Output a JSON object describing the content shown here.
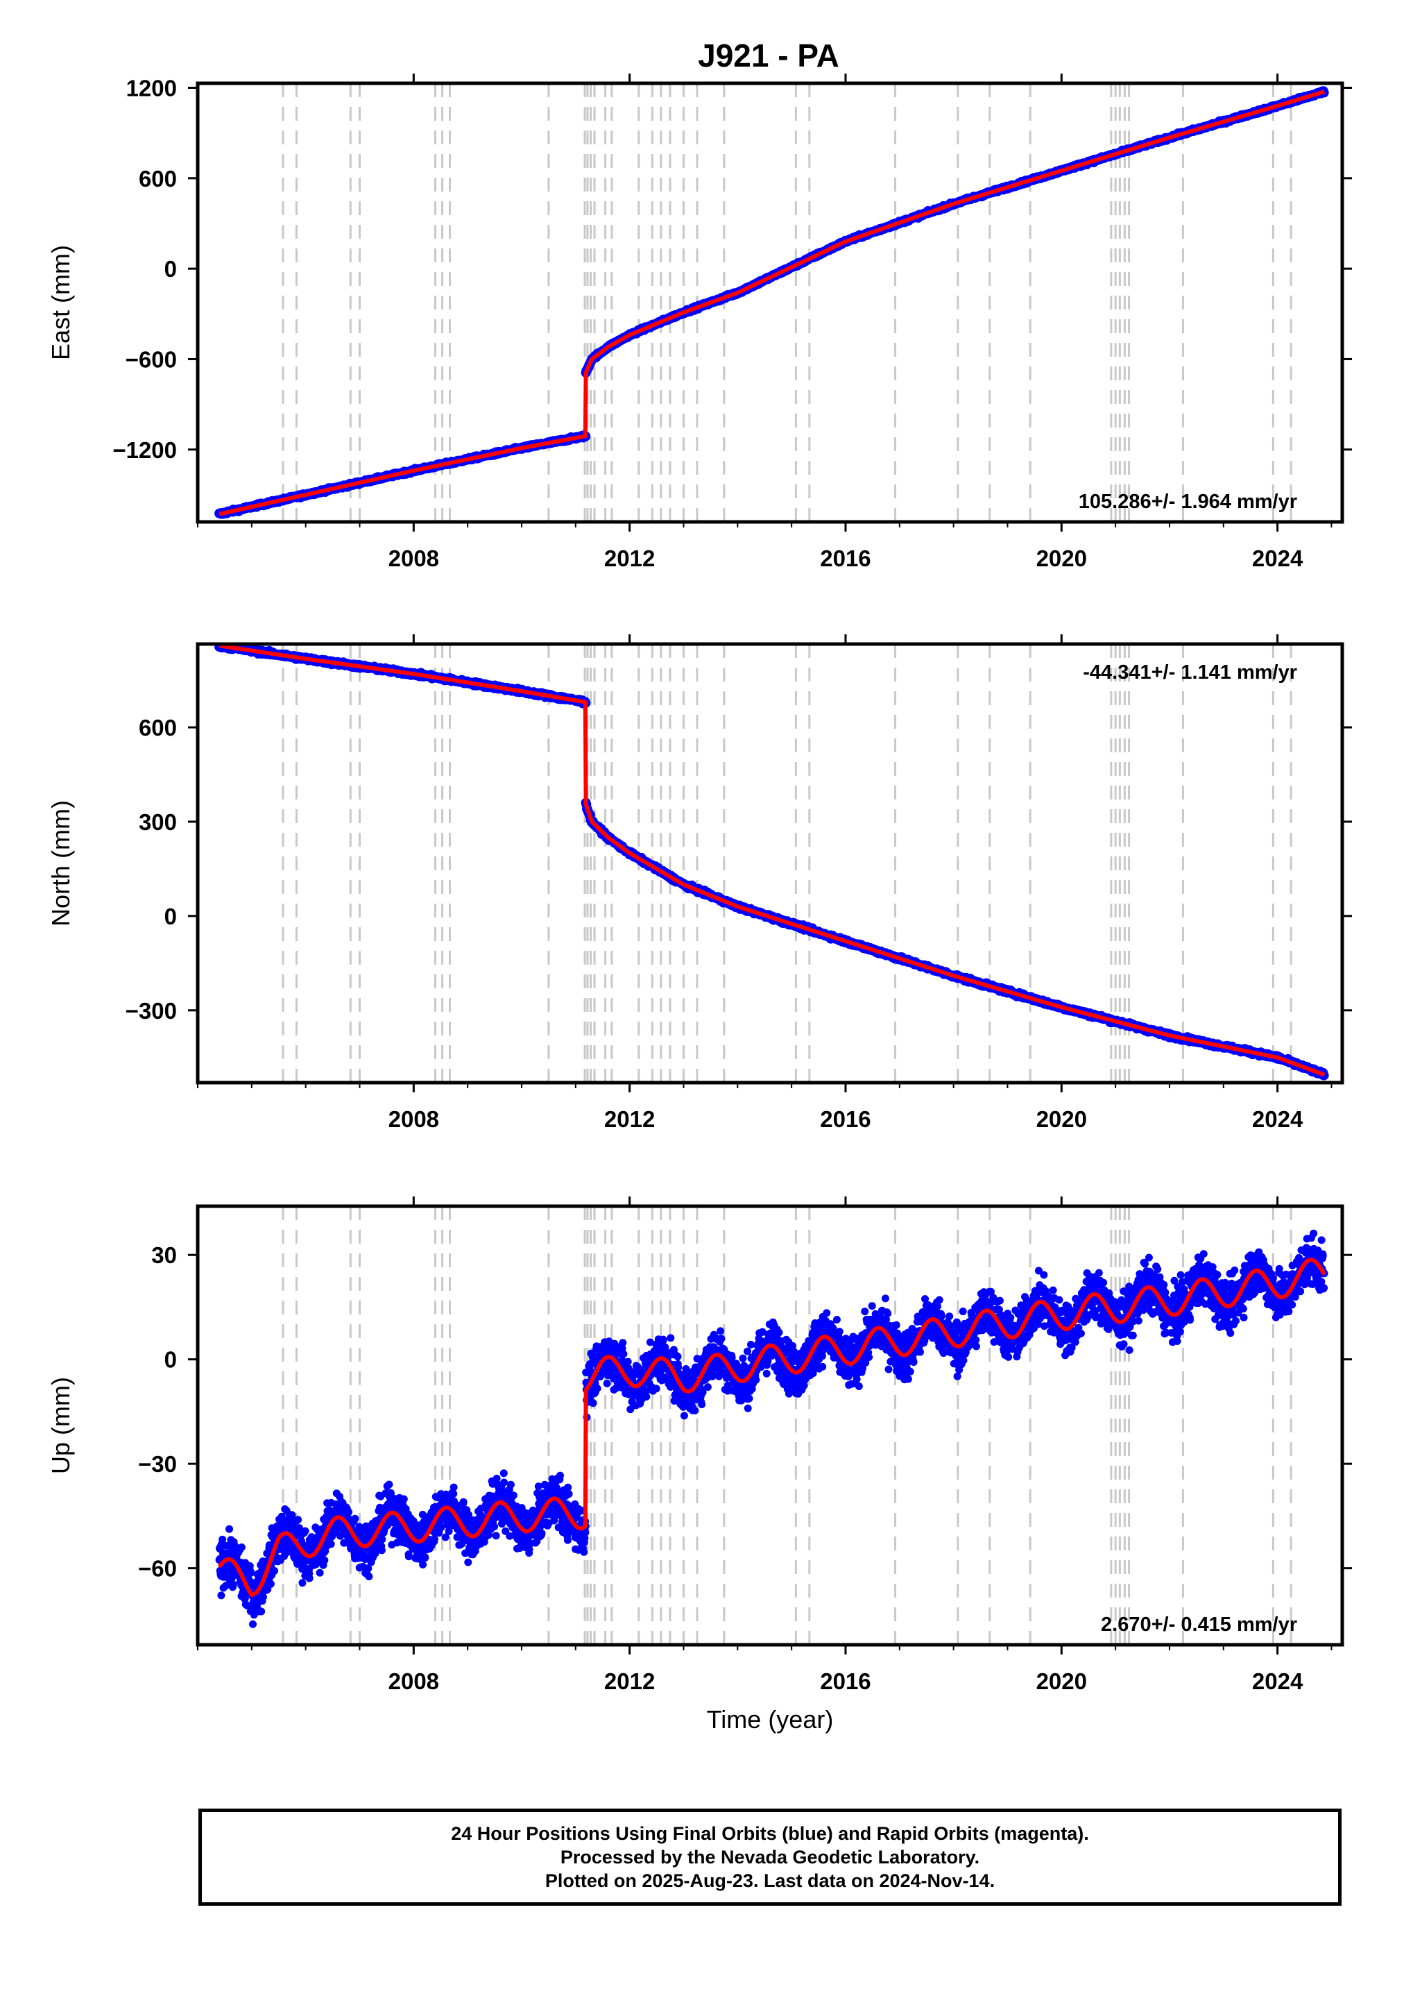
{
  "figure_title": "J921 - PA",
  "colors": {
    "final_orbits": "#0000ff",
    "model": "#ff0000",
    "event_lines": "#c8c8c8",
    "frame": "#000000"
  },
  "caption": {
    "line1": "24 Hour Positions Using Final Orbits (blue) and Rapid Orbits (magenta).",
    "line2": "Processed by the Nevada Geodetic Laboratory.",
    "line3": "Plotted on 2025-Aug-23. Last data on 2024-Nov-14."
  },
  "chart_data": [
    {
      "type": "scatter",
      "ylabel": "East (mm)",
      "xlabel": "",
      "xlim": [
        2004.0,
        2025.2
      ],
      "ylim": [
        -1680,
        1230
      ],
      "x_ticks": [
        2008,
        2012,
        2016,
        2020,
        2024
      ],
      "x_tick_labels": [
        "2008",
        "2012",
        "2016",
        "2020",
        "2024"
      ],
      "y_ticks": [
        1200,
        600,
        0,
        -600,
        -1200
      ],
      "y_tick_labels": [
        "1200",
        "600",
        "0",
        "−600",
        "−1200"
      ],
      "rate": "105.286+/- 1.964 mm/yr",
      "rate_position": "bottom-right",
      "equipment_changes": [
        2005.58,
        2005.83,
        2006.83,
        2007.0,
        2008.4,
        2008.53,
        2008.67,
        2010.5,
        2011.17,
        2011.22,
        2011.28,
        2011.35,
        2011.55,
        2011.67,
        2012.17,
        2012.42,
        2012.58,
        2012.75,
        2013.0,
        2013.25,
        2013.75,
        2015.08,
        2015.33,
        2016.92,
        2018.08,
        2018.67,
        2019.42,
        2020.92,
        2021.0,
        2021.08,
        2021.17,
        2021.25,
        2022.25,
        2023.92,
        2024.25
      ],
      "series": [
        {
          "segments": [
            {
              "x": [
                2004.4,
                2006.0,
                2008.0,
                2010.0,
                2011.19
              ],
              "y": [
                -1628,
                -1500,
                -1340,
                -1190,
                -1110
              ]
            },
            {
              "x": [
                2011.19,
                2011.3,
                2011.6,
                2012.0,
                2013.0,
                2014.0,
                2016.0,
                2018.0,
                2020.0,
                2022.0,
                2024.0,
                2024.87
              ],
              "y": [
                -690,
                -600,
                -520,
                -440,
                -290,
                -160,
                180,
                430,
                650,
                870,
                1080,
                1175
              ]
            }
          ],
          "noise": 6
        }
      ]
    },
    {
      "type": "scatter",
      "ylabel": "North (mm)",
      "xlabel": "",
      "xlim": [
        2004.0,
        2025.2
      ],
      "ylim": [
        -530,
        865
      ],
      "x_ticks": [
        2008,
        2012,
        2016,
        2020,
        2024
      ],
      "x_tick_labels": [
        "2008",
        "2012",
        "2016",
        "2020",
        "2024"
      ],
      "y_ticks": [
        600,
        300,
        0,
        -300
      ],
      "y_tick_labels": [
        "600",
        "300",
        "0",
        "−300"
      ],
      "rate": "-44.341+/- 1.141 mm/yr",
      "rate_position": "top-right",
      "equipment_changes": [
        2005.58,
        2005.83,
        2006.83,
        2007.0,
        2008.4,
        2008.53,
        2008.67,
        2010.5,
        2011.17,
        2011.22,
        2011.28,
        2011.35,
        2011.55,
        2011.67,
        2012.17,
        2012.42,
        2012.58,
        2012.75,
        2013.0,
        2013.25,
        2013.75,
        2015.08,
        2015.33,
        2016.92,
        2018.08,
        2018.67,
        2019.42,
        2020.92,
        2021.0,
        2021.08,
        2021.17,
        2021.25,
        2022.25,
        2023.92,
        2024.25
      ],
      "series": [
        {
          "segments": [
            {
              "x": [
                2004.4,
                2006.0,
                2008.0,
                2010.0,
                2011.19
              ],
              "y": [
                860,
                818,
                770,
                715,
                680
              ]
            },
            {
              "x": [
                2011.19,
                2011.3,
                2011.6,
                2012.0,
                2013.0,
                2014.0,
                2016.0,
                2018.0,
                2020.0,
                2022.0,
                2024.0,
                2024.87
              ],
              "y": [
                355,
                300,
                250,
                200,
                100,
                30,
                -80,
                -190,
                -290,
                -380,
                -450,
                -505
              ]
            }
          ],
          "noise": 4
        }
      ]
    },
    {
      "type": "scatter",
      "ylabel": "Up (mm)",
      "xlabel": "Time (year)",
      "xlim": [
        2004.0,
        2025.2
      ],
      "ylim": [
        -82,
        44
      ],
      "x_ticks": [
        2008,
        2012,
        2016,
        2020,
        2024
      ],
      "x_tick_labels": [
        "2008",
        "2012",
        "2016",
        "2020",
        "2024"
      ],
      "y_ticks": [
        30,
        0,
        -30,
        -60
      ],
      "y_tick_labels": [
        "30",
        "0",
        "−30",
        "−60"
      ],
      "rate": "2.670+/- 0.415 mm/yr",
      "rate_position": "bottom-right",
      "equipment_changes": [
        2005.58,
        2005.83,
        2006.83,
        2007.0,
        2008.4,
        2008.53,
        2008.67,
        2010.5,
        2011.17,
        2011.22,
        2011.28,
        2011.35,
        2011.55,
        2011.67,
        2012.17,
        2012.42,
        2012.58,
        2012.75,
        2013.0,
        2013.25,
        2013.75,
        2015.08,
        2015.33,
        2016.92,
        2018.08,
        2018.67,
        2019.42,
        2020.92,
        2021.0,
        2021.08,
        2021.17,
        2021.25,
        2022.25,
        2023.92,
        2024.25
      ],
      "series": [
        {
          "segments": [
            {
              "x": [
                2004.4,
                2005.0,
                2005.5,
                2006.5,
                2008.0,
                2010.0,
                2011.19
              ],
              "y": [
                -61,
                -64,
                -55,
                -50,
                -48,
                -45,
                -44
              ]
            },
            {
              "x": [
                2011.19,
                2011.5,
                2012.0,
                2013.0,
                2014.0,
                2016.0,
                2018.0,
                2020.0,
                2022.0,
                2024.0,
                2024.87
              ],
              "y": [
                -5,
                -4,
                -3,
                -5,
                -2,
                3,
                8,
                13,
                17,
                22,
                25
              ]
            }
          ],
          "seasonal_amplitude": 4.5,
          "noise": 4.5
        }
      ]
    }
  ]
}
